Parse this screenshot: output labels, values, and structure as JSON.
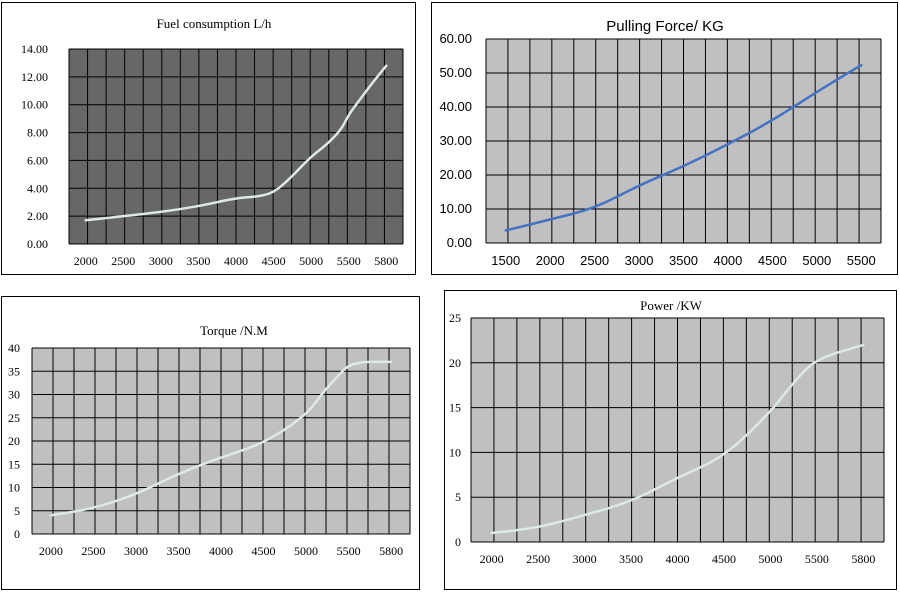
{
  "chart_data": [
    {
      "type": "line",
      "title": "Fuel consumption L/h",
      "xlabel": "",
      "ylabel": "",
      "x_ticks": [
        "2000",
        "2500",
        "3000",
        "3500",
        "4000",
        "4500",
        "5000",
        "5500",
        "5800"
      ],
      "y_ticks": [
        "0.00",
        "2.00",
        "4.00",
        "6.00",
        "8.00",
        "10.00",
        "12.00",
        "14.00"
      ],
      "ylim": [
        0,
        14
      ],
      "grid": true,
      "colors": {
        "plot_bg": "#676767",
        "line": "#dde9e6",
        "grid": "#000000"
      },
      "series": [
        {
          "x": [
            2000,
            2500,
            3000,
            3500,
            4000,
            4300,
            4500,
            4700,
            5000,
            5200,
            5400,
            5500,
            5600,
            5700,
            5800
          ],
          "y": [
            1.7,
            2.0,
            2.3,
            2.7,
            3.3,
            3.4,
            3.7,
            4.6,
            6.3,
            7.1,
            8.2,
            9.3,
            10.5,
            11.7,
            12.8
          ]
        }
      ]
    },
    {
      "type": "line",
      "title": "Pulling Force/ KG",
      "xlabel": "",
      "ylabel": "",
      "x_ticks": [
        "1500",
        "2000",
        "2500",
        "3000",
        "3500",
        "4000",
        "4500",
        "5000",
        "5500"
      ],
      "y_ticks": [
        "0.00",
        "10.00",
        "20.00",
        "30.00",
        "40.00",
        "50.00",
        "60.00"
      ],
      "ylim": [
        0,
        60
      ],
      "grid": true,
      "colors": {
        "plot_bg": "#c0c0c0",
        "line": "#4472c4",
        "grid": "#000000"
      },
      "series": [
        {
          "x": [
            1500,
            2000,
            2500,
            3000,
            3500,
            4000,
            4500,
            5000,
            5500
          ],
          "y": [
            3.7,
            6.9,
            10.2,
            17.0,
            22.5,
            29.0,
            36.0,
            44.5,
            52.3
          ]
        }
      ]
    },
    {
      "type": "line",
      "title": "Torque /N.M",
      "xlabel": "",
      "ylabel": "",
      "x_ticks": [
        "2000",
        "2500",
        "3000",
        "3500",
        "4000",
        "4500",
        "5000",
        "5500",
        "5800"
      ],
      "y_ticks": [
        "0",
        "5",
        "10",
        "15",
        "20",
        "25",
        "30",
        "35",
        "40"
      ],
      "ylim": [
        0,
        40
      ],
      "grid": true,
      "colors": {
        "plot_bg": "#c0c0c0",
        "line": "#dde9e6",
        "grid": "#000000"
      },
      "series": [
        {
          "x": [
            2000,
            2500,
            3000,
            3500,
            4000,
            4500,
            5000,
            5200,
            5400,
            5500,
            5600,
            5700,
            5800
          ],
          "y": [
            4.0,
            5.5,
            8.5,
            13.0,
            16.5,
            19.5,
            25.5,
            30.5,
            34.5,
            36.3,
            37.0,
            37.0,
            37.0
          ]
        }
      ]
    },
    {
      "type": "line",
      "title": "Power /KW",
      "xlabel": "",
      "ylabel": "",
      "x_ticks": [
        "2000",
        "2500",
        "3000",
        "3500",
        "4000",
        "4500",
        "5000",
        "5500",
        "5800"
      ],
      "y_ticks": [
        "0",
        "5",
        "10",
        "15",
        "20",
        "25"
      ],
      "ylim": [
        0,
        25
      ],
      "grid": true,
      "colors": {
        "plot_bg": "#c0c0c0",
        "line": "#dde9e6",
        "grid": "#000000"
      },
      "series": [
        {
          "x": [
            2000,
            2500,
            3000,
            3500,
            4000,
            4500,
            5000,
            5200,
            5400,
            5500,
            5600,
            5800
          ],
          "y": [
            1.0,
            1.6,
            3.0,
            4.5,
            7.2,
            9.5,
            14.5,
            17.2,
            19.5,
            20.2,
            21.0,
            22.0
          ]
        }
      ]
    }
  ]
}
